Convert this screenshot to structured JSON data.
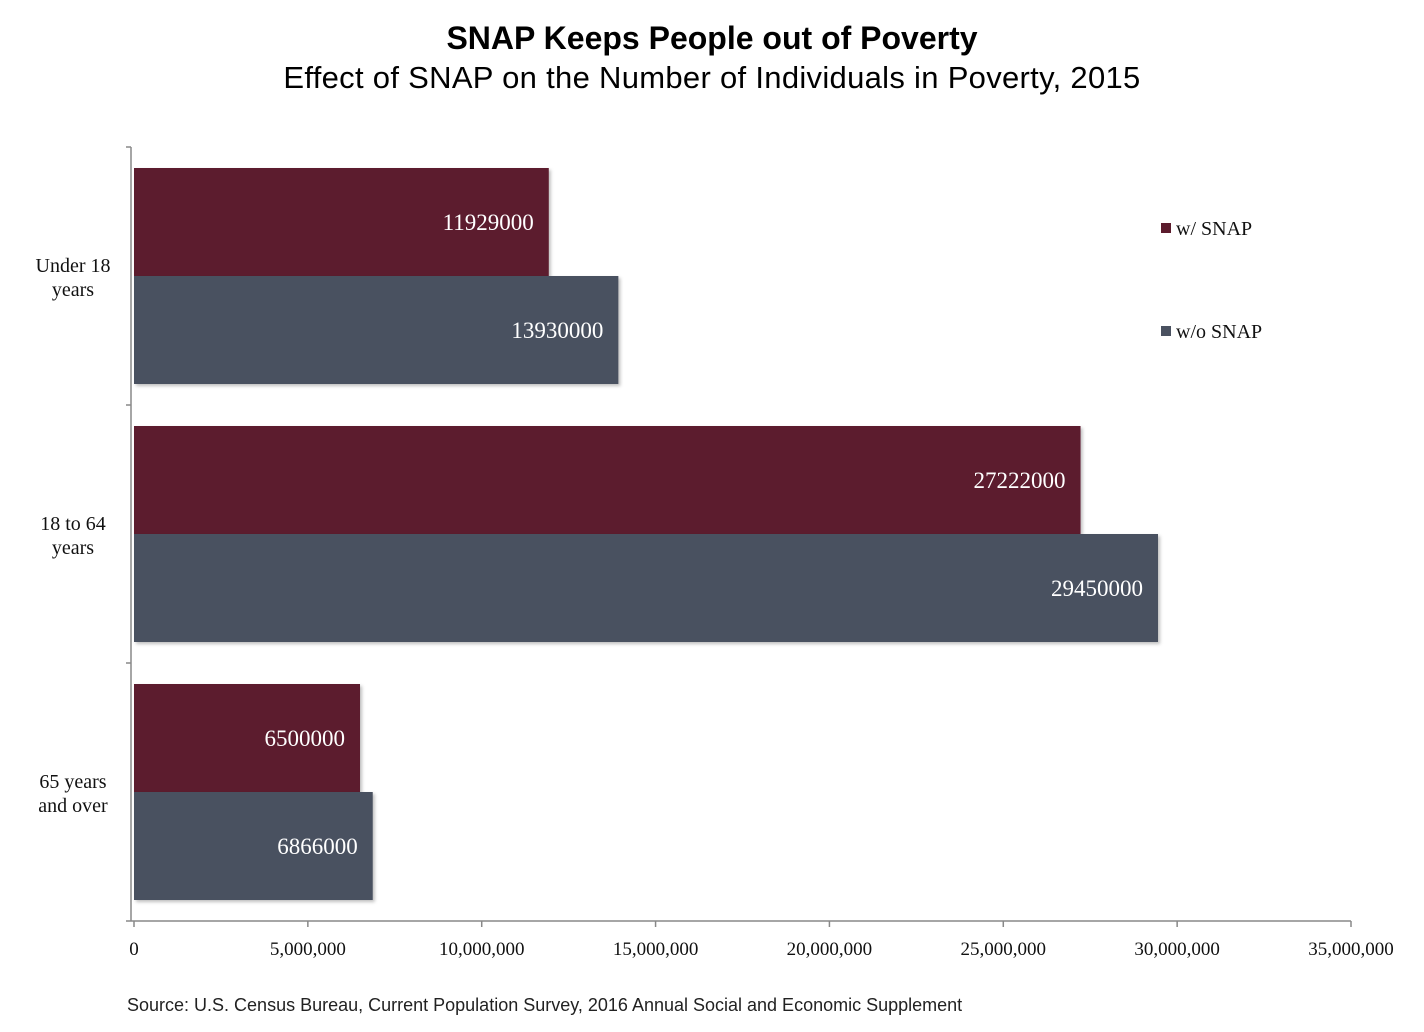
{
  "chart_data": {
    "type": "bar",
    "orientation": "horizontal",
    "title": "SNAP Keeps People out of Poverty",
    "subtitle": "Effect of SNAP on the Number of Individuals in Poverty, 2015",
    "categories": [
      "Under 18 years",
      "18 to 64 years",
      "65 years and over"
    ],
    "category_lines": [
      [
        "Under 18",
        "years"
      ],
      [
        "18 to 64",
        "years"
      ],
      [
        "65 years",
        "and over"
      ]
    ],
    "series": [
      {
        "name": "w/ SNAP",
        "color": "#5c1c2d",
        "values": [
          11929000,
          27222000,
          6500000
        ]
      },
      {
        "name": "w/o SNAP",
        "color": "#4a5160",
        "values": [
          13930000,
          29450000,
          6866000
        ]
      }
    ],
    "data_labels": [
      [
        "11929000",
        "27222000",
        "6500000"
      ],
      [
        "13930000",
        "29450000",
        "6866000"
      ]
    ],
    "xlim": [
      0,
      35000000
    ],
    "x_ticks": [
      0,
      5000000,
      10000000,
      15000000,
      20000000,
      25000000,
      30000000,
      35000000
    ],
    "x_tick_labels": [
      "0",
      "5,000,000",
      "10,000,000",
      "15,000,000",
      "20,000,000",
      "25,000,000",
      "30,000,000",
      "35,000,000"
    ],
    "grid": false,
    "legend_position": "top-right",
    "source": "Source: U.S. Census Bureau, Current Population Survey, 2016 Annual Social and Economic Supplement"
  }
}
